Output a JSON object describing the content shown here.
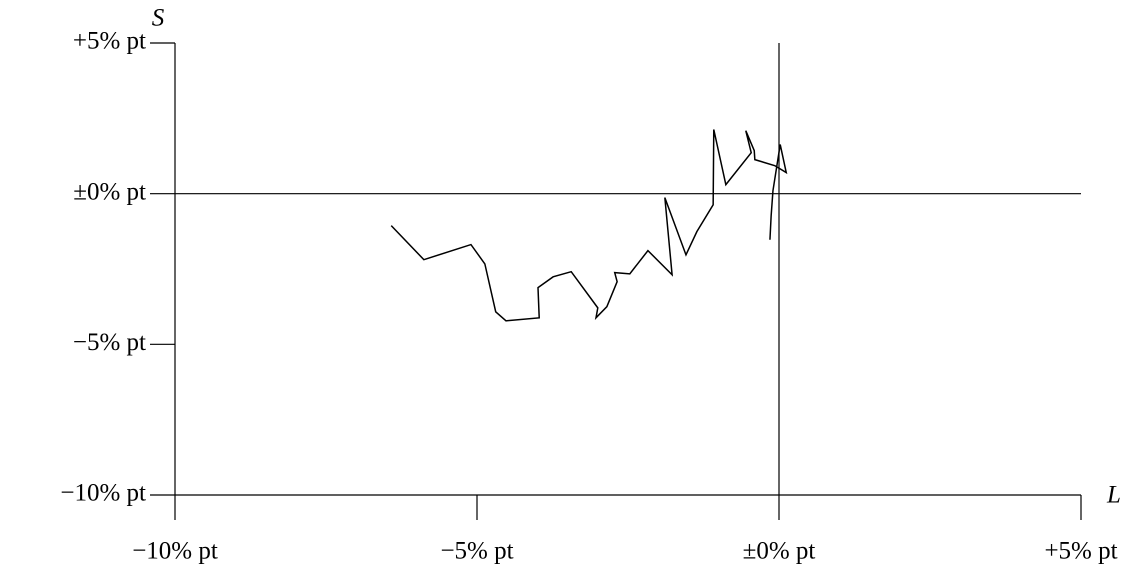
{
  "chart_data": {
    "type": "line",
    "x_label": "L",
    "y_label": "S",
    "x": [
      -6.42,
      -5.88,
      -5.1,
      -4.87,
      -4.69,
      -4.52,
      -3.97,
      -3.99,
      -3.74,
      -3.44,
      -3.0,
      -3.03,
      -2.85,
      -2.68,
      -2.72,
      -2.47,
      -2.17,
      -1.77,
      -1.89,
      -1.54,
      -1.36,
      -1.09,
      -1.08,
      -0.88,
      -0.46,
      -0.55,
      -0.41,
      -0.4,
      -0.07,
      0.12,
      0.02,
      -0.1,
      -0.13,
      -0.15
    ],
    "values": [
      -1.06,
      -2.19,
      -1.69,
      -2.33,
      -3.92,
      -4.22,
      -4.12,
      -3.12,
      -2.76,
      -2.59,
      -3.79,
      -4.12,
      -3.75,
      -2.92,
      -2.62,
      -2.66,
      -1.89,
      -2.69,
      -0.13,
      -2.03,
      -1.26,
      -0.37,
      2.13,
      0.3,
      1.36,
      2.09,
      1.43,
      1.13,
      0.93,
      0.7,
      1.63,
      0.1,
      -0.73,
      -1.53
    ],
    "color": "#000000",
    "xlim": [
      -10,
      5
    ],
    "ylim": [
      -10,
      5
    ],
    "xticks": [
      {
        "value": -10,
        "label": "−10% pt"
      },
      {
        "value": -5,
        "label": "−5% pt"
      },
      {
        "value": 0,
        "label": "±0% pt"
      },
      {
        "value": 5,
        "label": "+5% pt"
      }
    ],
    "yticks": [
      {
        "value": -10,
        "label": "−10% pt"
      },
      {
        "value": -5,
        "label": "−5% pt"
      },
      {
        "value": 0,
        "label": "±0% pt"
      },
      {
        "value": 5,
        "label": "+5% pt"
      }
    ],
    "zero_lines": true
  }
}
